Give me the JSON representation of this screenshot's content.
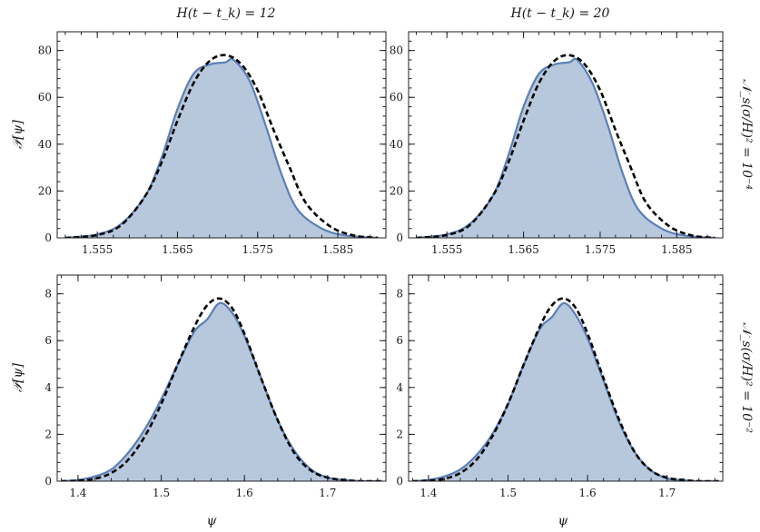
{
  "colors": {
    "fill": "#b8c8dc",
    "line": "#5a7fb8",
    "fit": "#000000"
  },
  "labels": {
    "col_titles": [
      "H(t − t_k) = 12",
      "H(t − t_k) = 20"
    ],
    "row_labels": [
      "𝒩_s(σ/H)² = 10⁻⁴",
      "𝒩_s(σ/H)² = 10⁻²"
    ],
    "ylabel": "𝒫[ψ]",
    "xlabel": "ψ"
  },
  "chart_data": [
    {
      "type": "area",
      "panel": "top-left",
      "xlim": [
        1.55,
        1.591
      ],
      "ylim": [
        0,
        88
      ],
      "xticks": [
        1.555,
        1.565,
        1.575,
        1.585
      ],
      "xtick_labels": [
        "1.555",
        "1.565",
        "1.575",
        "1.585"
      ],
      "yticks": [
        0,
        20,
        40,
        60,
        80
      ],
      "ytick_labels": [
        "0",
        "20",
        "40",
        "60",
        "80"
      ],
      "series": [
        {
          "style": "filled-histogram",
          "x": [
            1.551,
            1.555,
            1.558,
            1.561,
            1.563,
            1.565,
            1.567,
            1.569,
            1.571,
            1.572,
            1.574,
            1.576,
            1.578,
            1.58,
            1.583,
            1.586,
            1.59
          ],
          "y": [
            0,
            1.5,
            6,
            18,
            34,
            55,
            70,
            74,
            75,
            76,
            67,
            48,
            27,
            12,
            4,
            1,
            0
          ]
        },
        {
          "style": "dashed-fit",
          "x": [
            1.551,
            1.555,
            1.558,
            1.561,
            1.563,
            1.565,
            1.567,
            1.569,
            1.571,
            1.573,
            1.575,
            1.577,
            1.579,
            1.581,
            1.584,
            1.587,
            1.59
          ],
          "y": [
            0,
            1.2,
            5.5,
            18,
            32,
            50,
            66,
            75.5,
            78,
            74,
            63,
            46,
            30,
            15,
            5,
            1,
            0
          ]
        }
      ]
    },
    {
      "type": "area",
      "panel": "top-right",
      "xlim": [
        1.55,
        1.591
      ],
      "ylim": [
        0,
        88
      ],
      "xticks": [
        1.555,
        1.565,
        1.575,
        1.585
      ],
      "xtick_labels": [
        "1.555",
        "1.565",
        "1.575",
        "1.585"
      ],
      "yticks": [
        0,
        20,
        40,
        60,
        80
      ],
      "ytick_labels": [
        "0",
        "20",
        "40",
        "60",
        "80"
      ],
      "series": [
        {
          "style": "filled-histogram",
          "x": [
            1.551,
            1.555,
            1.558,
            1.561,
            1.563,
            1.565,
            1.567,
            1.569,
            1.571,
            1.572,
            1.574,
            1.576,
            1.578,
            1.58,
            1.583,
            1.586,
            1.59
          ],
          "y": [
            0,
            1.5,
            6,
            18,
            35,
            56,
            70,
            74,
            75,
            76,
            66,
            48,
            27,
            12,
            4,
            1,
            0
          ]
        },
        {
          "style": "dashed-fit",
          "x": [
            1.551,
            1.555,
            1.558,
            1.561,
            1.563,
            1.565,
            1.567,
            1.569,
            1.571,
            1.573,
            1.575,
            1.577,
            1.579,
            1.581,
            1.584,
            1.587,
            1.59
          ],
          "y": [
            0,
            1.2,
            5.5,
            18,
            32,
            50,
            66,
            75.5,
            78,
            74,
            63,
            46,
            30,
            15,
            5,
            1,
            0
          ]
        }
      ]
    },
    {
      "type": "area",
      "panel": "bottom-left",
      "xlim": [
        1.375,
        1.77
      ],
      "ylim": [
        0,
        8.8
      ],
      "xticks": [
        1.4,
        1.5,
        1.6,
        1.7
      ],
      "xtick_labels": [
        "1.4",
        "1.5",
        "1.6",
        "1.7"
      ],
      "yticks": [
        0,
        2,
        4,
        6,
        8
      ],
      "ytick_labels": [
        "0",
        "2",
        "4",
        "6",
        "8"
      ],
      "series": [
        {
          "style": "filled-histogram",
          "x": [
            1.38,
            1.4,
            1.42,
            1.44,
            1.46,
            1.48,
            1.5,
            1.52,
            1.54,
            1.555,
            1.57,
            1.585,
            1.6,
            1.62,
            1.64,
            1.66,
            1.68,
            1.7,
            1.72,
            1.74,
            1.765
          ],
          "y": [
            0,
            0.05,
            0.2,
            0.5,
            1.2,
            2.2,
            3.5,
            5.0,
            6.4,
            6.9,
            7.6,
            7.2,
            6.2,
            4.4,
            2.6,
            1.3,
            0.5,
            0.15,
            0.05,
            0,
            0
          ]
        },
        {
          "style": "dashed-fit",
          "x": [
            1.38,
            1.4,
            1.42,
            1.44,
            1.46,
            1.48,
            1.5,
            1.52,
            1.54,
            1.555,
            1.57,
            1.585,
            1.6,
            1.62,
            1.64,
            1.66,
            1.68,
            1.7,
            1.72,
            1.74,
            1.765
          ],
          "y": [
            0,
            0.02,
            0.1,
            0.35,
            0.9,
            1.9,
            3.3,
            5.0,
            6.6,
            7.5,
            7.8,
            7.4,
            6.3,
            4.4,
            2.6,
            1.2,
            0.45,
            0.15,
            0.05,
            0,
            0
          ]
        }
      ]
    },
    {
      "type": "area",
      "panel": "bottom-right",
      "xlim": [
        1.375,
        1.77
      ],
      "ylim": [
        0,
        8.8
      ],
      "xticks": [
        1.4,
        1.5,
        1.6,
        1.7
      ],
      "xtick_labels": [
        "1.4",
        "1.5",
        "1.6",
        "1.7"
      ],
      "yticks": [
        0,
        2,
        4,
        6,
        8
      ],
      "ytick_labels": [
        "0",
        "2",
        "4",
        "6",
        "8"
      ],
      "series": [
        {
          "style": "filled-histogram",
          "x": [
            1.38,
            1.4,
            1.42,
            1.44,
            1.46,
            1.48,
            1.5,
            1.52,
            1.54,
            1.555,
            1.57,
            1.585,
            1.6,
            1.62,
            1.64,
            1.66,
            1.68,
            1.7,
            1.72,
            1.74,
            1.765
          ],
          "y": [
            0,
            0.05,
            0.2,
            0.5,
            1.1,
            2.0,
            3.3,
            5.0,
            6.5,
            7.0,
            7.6,
            7.1,
            6.1,
            4.3,
            2.5,
            1.2,
            0.45,
            0.12,
            0.04,
            0,
            0
          ]
        },
        {
          "style": "dashed-fit",
          "x": [
            1.38,
            1.4,
            1.42,
            1.44,
            1.46,
            1.48,
            1.5,
            1.52,
            1.54,
            1.555,
            1.57,
            1.585,
            1.6,
            1.62,
            1.64,
            1.66,
            1.68,
            1.7,
            1.72,
            1.74,
            1.765
          ],
          "y": [
            0,
            0.02,
            0.1,
            0.35,
            0.9,
            1.9,
            3.3,
            5.0,
            6.6,
            7.5,
            7.8,
            7.4,
            6.3,
            4.4,
            2.6,
            1.2,
            0.45,
            0.15,
            0.05,
            0,
            0
          ]
        }
      ]
    }
  ]
}
